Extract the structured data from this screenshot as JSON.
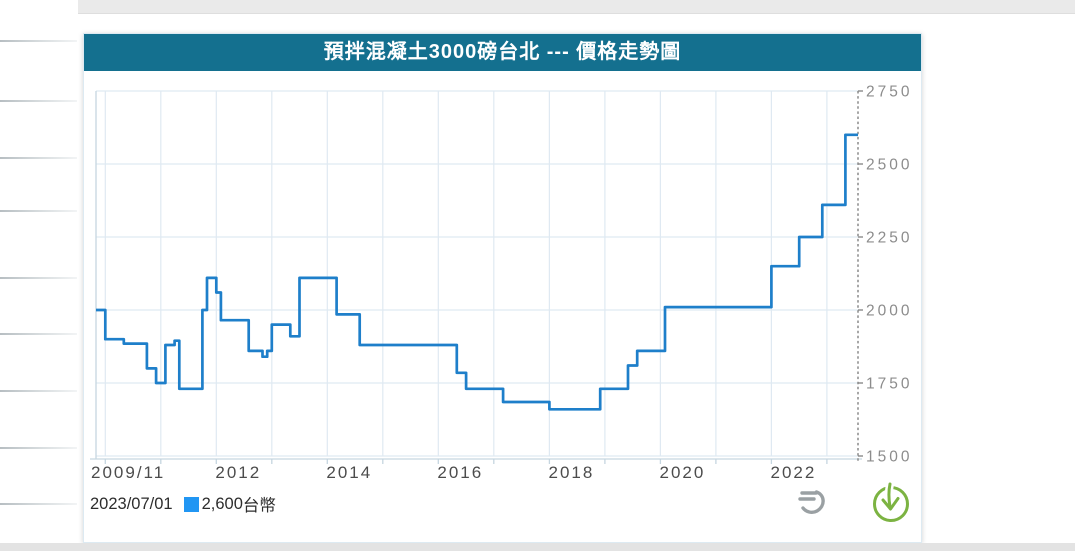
{
  "header": {
    "title": "預拌混凝土3000磅台北 --- 價格走勢圖"
  },
  "tooltip": {
    "date": "2023/07/01",
    "value": "2,600",
    "unit": "台幣"
  },
  "icons": {
    "context_menu": "chart-context-menu",
    "download": "download-chart"
  },
  "colors": {
    "title_bg": "#14708f",
    "line": "#1e7fca",
    "marker": "#2196f3",
    "grid": "#dfe9f2",
    "axis": "#c6d6e0",
    "crosshair": "#8a8a8a",
    "y_label": "#8c8c8c",
    "x_label": "#4c4c4c",
    "icon_gray": "#9aa0a3",
    "icon_green": "#7cb342"
  },
  "chart_data": {
    "type": "line",
    "step": true,
    "title": "預拌混凝土3000磅台北 --- 價格走勢圖",
    "unit": "台幣",
    "ylim": [
      1500,
      2750
    ],
    "y_ticks": [
      1500,
      1750,
      2000,
      2250,
      2500,
      2750
    ],
    "x_tick_labels": [
      "2009/11",
      "2012",
      "2014",
      "2016",
      "2018",
      "2020",
      "2022"
    ],
    "grid": true,
    "legend_position": "bottom-left",
    "points": [
      {
        "date": "2009/11",
        "value": 2000
      },
      {
        "date": "2010/01",
        "value": 1900
      },
      {
        "date": "2010/05",
        "value": 1885
      },
      {
        "date": "2010/10",
        "value": 1800
      },
      {
        "date": "2010/12",
        "value": 1750
      },
      {
        "date": "2011/02",
        "value": 1880
      },
      {
        "date": "2011/04",
        "value": 1895
      },
      {
        "date": "2011/05",
        "value": 1730
      },
      {
        "date": "2011/10",
        "value": 2000
      },
      {
        "date": "2011/11",
        "value": 2110
      },
      {
        "date": "2012/01",
        "value": 2060
      },
      {
        "date": "2012/02",
        "value": 1965
      },
      {
        "date": "2012/08",
        "value": 1860
      },
      {
        "date": "2012/11",
        "value": 1840
      },
      {
        "date": "2012/12",
        "value": 1860
      },
      {
        "date": "2013/01",
        "value": 1950
      },
      {
        "date": "2013/05",
        "value": 1910
      },
      {
        "date": "2013/07",
        "value": 2110
      },
      {
        "date": "2014/03",
        "value": 1985
      },
      {
        "date": "2014/08",
        "value": 1880
      },
      {
        "date": "2016/05",
        "value": 1785
      },
      {
        "date": "2016/07",
        "value": 1730
      },
      {
        "date": "2017/03",
        "value": 1685
      },
      {
        "date": "2018/01",
        "value": 1660
      },
      {
        "date": "2018/12",
        "value": 1730
      },
      {
        "date": "2019/06",
        "value": 1810
      },
      {
        "date": "2019/08",
        "value": 1860
      },
      {
        "date": "2020/02",
        "value": 2010
      },
      {
        "date": "2022/01",
        "value": 2150
      },
      {
        "date": "2022/07",
        "value": 2250
      },
      {
        "date": "2022/12",
        "value": 2360
      },
      {
        "date": "2023/05",
        "value": 2600
      },
      {
        "date": "2023/07",
        "value": 2600
      }
    ]
  }
}
